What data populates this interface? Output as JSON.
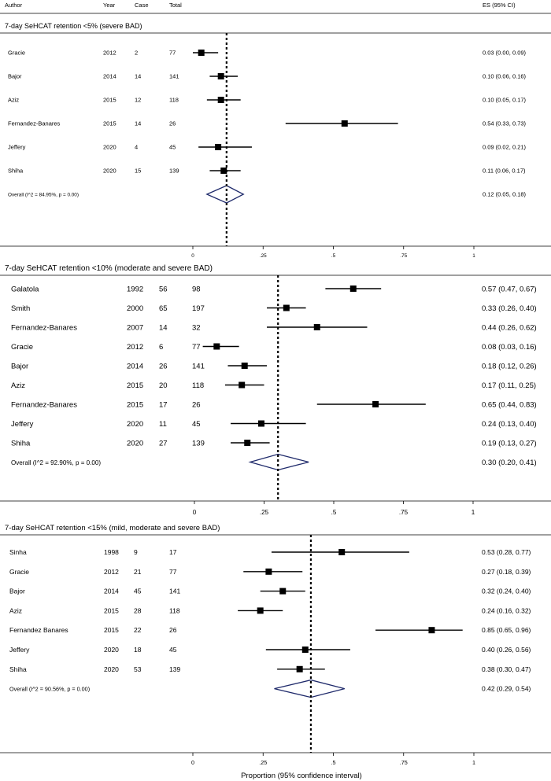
{
  "header": {
    "author": "Author",
    "year": "Year",
    "case": "Case",
    "total": "Total",
    "es": "ES (95% CI)"
  },
  "footer": {
    "xlabel": "Proportion (95% confidence interval)"
  },
  "colors": {
    "diamond": "#1f2a6b",
    "ink": "#000000"
  },
  "chart_data": [
    {
      "type": "forest",
      "title": "7-day SeHCAT retention <5% (severe BAD)",
      "xlim": [
        0,
        1
      ],
      "ticks": [
        "0",
        ".25",
        ".5",
        ".75",
        "1"
      ],
      "tick_values": [
        0,
        0.25,
        0.5,
        0.75,
        1
      ],
      "studies": [
        {
          "author": "Gracie",
          "year": "2012",
          "case": "2",
          "total": "77",
          "es": 0.03,
          "lo": 0.0,
          "hi": 0.09,
          "label": "0.03 (0.00, 0.09)"
        },
        {
          "author": "Bajor",
          "year": "2014",
          "case": "14",
          "total": "141",
          "es": 0.1,
          "lo": 0.06,
          "hi": 0.16,
          "label": "0.10 (0.06, 0.16)"
        },
        {
          "author": "Aziz",
          "year": "2015",
          "case": "12",
          "total": "118",
          "es": 0.1,
          "lo": 0.05,
          "hi": 0.17,
          "label": "0.10 (0.05, 0.17)"
        },
        {
          "author": "Fernandez-Banares",
          "year": "2015",
          "case": "14",
          "total": "26",
          "es": 0.54,
          "lo": 0.33,
          "hi": 0.73,
          "label": "0.54 (0.33, 0.73)"
        },
        {
          "author": "Jeffery",
          "year": "2020",
          "case": "4",
          "total": "45",
          "es": 0.09,
          "lo": 0.02,
          "hi": 0.21,
          "label": "0.09 (0.02, 0.21)"
        },
        {
          "author": "Shiha",
          "year": "2020",
          "case": "15",
          "total": "139",
          "es": 0.11,
          "lo": 0.06,
          "hi": 0.17,
          "label": "0.11 (0.06, 0.17)"
        }
      ],
      "overall": {
        "text": "Overall  (I^2 = 84.95%, p = 0.00)",
        "es": 0.12,
        "lo": 0.05,
        "hi": 0.18,
        "label": "0.12 (0.05, 0.18)"
      }
    },
    {
      "type": "forest",
      "title": "7-day SeHCAT retention <10% (moderate and severe BAD)",
      "xlim": [
        0,
        1
      ],
      "ticks": [
        "0",
        ".25",
        ".5",
        ".75",
        "1"
      ],
      "tick_values": [
        0,
        0.25,
        0.5,
        0.75,
        1
      ],
      "studies": [
        {
          "author": "Galatola",
          "year": "1992",
          "case": "56",
          "total": "98",
          "es": 0.57,
          "lo": 0.47,
          "hi": 0.67,
          "label": "0.57 (0.47, 0.67)"
        },
        {
          "author": "Smith",
          "year": "2000",
          "case": "65",
          "total": "197",
          "es": 0.33,
          "lo": 0.26,
          "hi": 0.4,
          "label": "0.33 (0.26, 0.40)"
        },
        {
          "author": "Fernandez-Banares",
          "year": "2007",
          "case": "14",
          "total": "32",
          "es": 0.44,
          "lo": 0.26,
          "hi": 0.62,
          "label": "0.44 (0.26, 0.62)"
        },
        {
          "author": "Gracie",
          "year": "2012",
          "case": "6",
          "total": "77",
          "es": 0.08,
          "lo": 0.03,
          "hi": 0.16,
          "label": "0.08 (0.03, 0.16)"
        },
        {
          "author": "Bajor",
          "year": "2014",
          "case": "26",
          "total": "141",
          "es": 0.18,
          "lo": 0.12,
          "hi": 0.26,
          "label": "0.18 (0.12, 0.26)"
        },
        {
          "author": "Aziz",
          "year": "2015",
          "case": "20",
          "total": "118",
          "es": 0.17,
          "lo": 0.11,
          "hi": 0.25,
          "label": "0.17 (0.11, 0.25)"
        },
        {
          "author": "Fernandez-Banares",
          "year": "2015",
          "case": "17",
          "total": "26",
          "es": 0.65,
          "lo": 0.44,
          "hi": 0.83,
          "label": "0.65 (0.44, 0.83)"
        },
        {
          "author": "Jeffery",
          "year": "2020",
          "case": "11",
          "total": "45",
          "es": 0.24,
          "lo": 0.13,
          "hi": 0.4,
          "label": "0.24 (0.13, 0.40)"
        },
        {
          "author": "Shiha",
          "year": "2020",
          "case": "27",
          "total": "139",
          "es": 0.19,
          "lo": 0.13,
          "hi": 0.27,
          "label": "0.19 (0.13, 0.27)"
        }
      ],
      "overall": {
        "text": "Overall  (I^2 = 92.90%, p = 0.00)",
        "es": 0.3,
        "lo": 0.2,
        "hi": 0.41,
        "label": "0.30 (0.20, 0.41)"
      }
    },
    {
      "type": "forest",
      "title": "7-day SeHCAT retention <15% (mild, moderate and severe BAD)",
      "xlim": [
        0,
        1
      ],
      "ticks": [
        "0",
        ".25",
        ".5",
        ".75",
        "1"
      ],
      "tick_values": [
        0,
        0.25,
        0.5,
        0.75,
        1
      ],
      "studies": [
        {
          "author": "Sinha",
          "year": "1998",
          "case": "9",
          "total": "17",
          "es": 0.53,
          "lo": 0.28,
          "hi": 0.77,
          "label": "0.53 (0.28, 0.77)"
        },
        {
          "author": "Gracie",
          "year": "2012",
          "case": "21",
          "total": "77",
          "es": 0.27,
          "lo": 0.18,
          "hi": 0.39,
          "label": "0.27 (0.18, 0.39)"
        },
        {
          "author": "Bajor",
          "year": "2014",
          "case": "45",
          "total": "141",
          "es": 0.32,
          "lo": 0.24,
          "hi": 0.4,
          "label": "0.32 (0.24, 0.40)"
        },
        {
          "author": "Aziz",
          "year": "2015",
          "case": "28",
          "total": "118",
          "es": 0.24,
          "lo": 0.16,
          "hi": 0.32,
          "label": "0.24 (0.16, 0.32)"
        },
        {
          "author": "Fernandez Banares",
          "year": "2015",
          "case": "22",
          "total": "26",
          "es": 0.85,
          "lo": 0.65,
          "hi": 0.96,
          "label": "0.85 (0.65, 0.96)"
        },
        {
          "author": "Jeffery",
          "year": "2020",
          "case": "18",
          "total": "45",
          "es": 0.4,
          "lo": 0.26,
          "hi": 0.56,
          "label": "0.40 (0.26, 0.56)"
        },
        {
          "author": "Shiha",
          "year": "2020",
          "case": "53",
          "total": "139",
          "es": 0.38,
          "lo": 0.3,
          "hi": 0.47,
          "label": "0.38 (0.30, 0.47)"
        }
      ],
      "overall": {
        "text": "Overall  (I^2 = 90.56%, p = 0.00)",
        "es": 0.42,
        "lo": 0.29,
        "hi": 0.54,
        "label": "0.42 (0.29, 0.54)"
      }
    }
  ]
}
